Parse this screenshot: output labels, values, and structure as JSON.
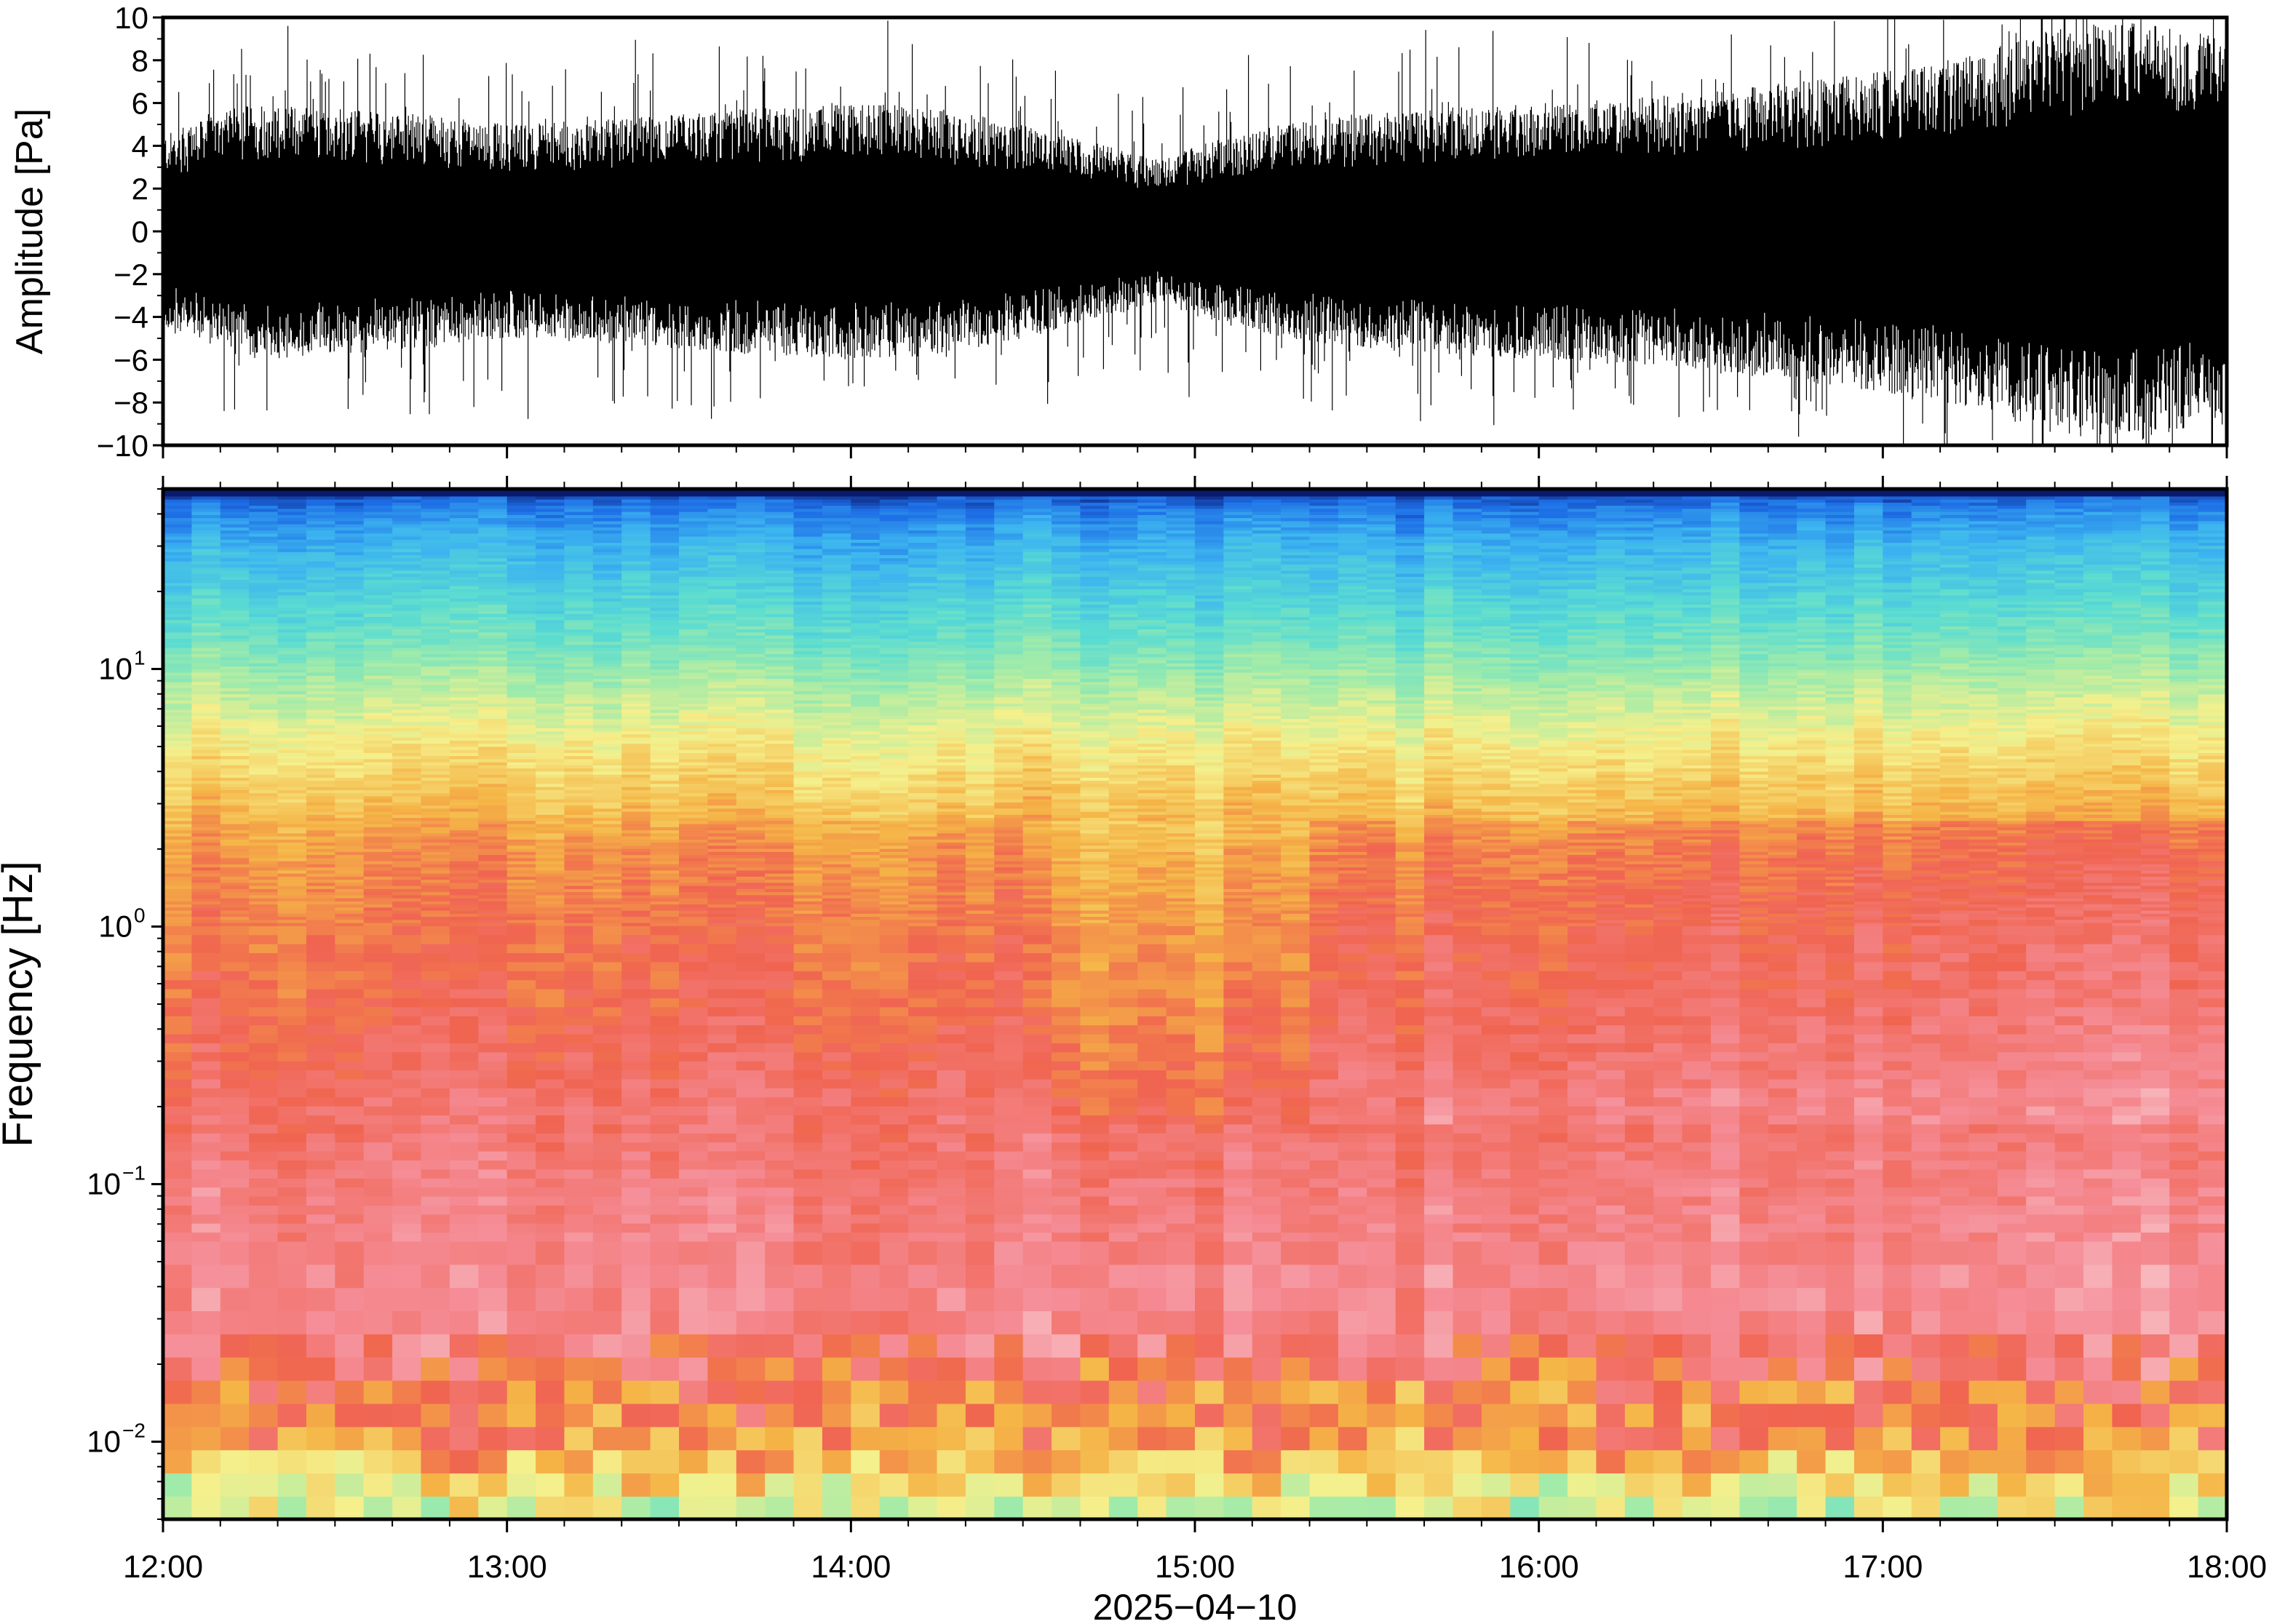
{
  "chart_data": [
    {
      "type": "line",
      "ylabel": "Amplitude [Pa]",
      "ylim": [
        -10,
        10
      ],
      "yticks": [
        "10",
        "8",
        "6",
        "4",
        "2",
        "0",
        "−2",
        "−4",
        "−6",
        "−8",
        "−10"
      ],
      "ytick_values": [
        10,
        8,
        6,
        4,
        2,
        0,
        -2,
        -4,
        -6,
        -8,
        -10
      ],
      "xlim": [
        "12:00",
        "18:00"
      ],
      "grid": false,
      "series": [
        {
          "color": "#000000",
          "envelope_hours": [
            12.0,
            12.25,
            12.5,
            12.75,
            13.0,
            13.25,
            13.5,
            13.75,
            14.0,
            14.25,
            14.5,
            14.75,
            14.9,
            15.0,
            15.25,
            15.5,
            15.75,
            16.0,
            16.25,
            16.5,
            16.75,
            17.0,
            17.25,
            17.5,
            17.75,
            18.0
          ],
          "envelope_amplitude": [
            4.5,
            6.0,
            5.8,
            5.5,
            5.0,
            5.2,
            5.5,
            5.8,
            6.0,
            5.8,
            5.0,
            4.0,
            3.3,
            4.0,
            5.0,
            5.5,
            5.8,
            6.0,
            6.2,
            6.6,
            7.0,
            7.5,
            8.2,
            9.5,
            9.8,
            9.0
          ]
        }
      ]
    },
    {
      "type": "heatmap",
      "xlabel": "2025−04−10",
      "ylabel": "Frequency [Hz]",
      "yscale": "log",
      "ylim": [
        0.005,
        50
      ],
      "yticks": [
        {
          "base": "10",
          "exp": "1",
          "value": 10
        },
        {
          "base": "10",
          "exp": "0",
          "value": 1
        },
        {
          "base": "10",
          "exp": "−1",
          "value": 0.1
        },
        {
          "base": "10",
          "exp": "−2",
          "value": 0.01
        }
      ],
      "xticks": [
        "12:00",
        "13:00",
        "14:00",
        "15:00",
        "16:00",
        "17:00",
        "18:00"
      ],
      "xtick_hours": [
        12,
        13,
        14,
        15,
        16,
        17,
        18
      ],
      "colormap": [
        "#0a1a6e",
        "#1e6ee6",
        "#3cb4f0",
        "#5adcd2",
        "#a0ebaa",
        "#f5f08c",
        "#f5b446",
        "#f06450",
        "#f58c96",
        "#fae6e6"
      ],
      "frequency_profile_log10hz": [
        -2.3,
        -2.15,
        -2.0,
        -1.8,
        -1.5,
        -1.0,
        -0.6,
        -0.3,
        0.0,
        0.3,
        0.55,
        0.75,
        0.95,
        1.1,
        1.3,
        1.5,
        1.62,
        1.7
      ],
      "frequency_profile_level": [
        0.5,
        0.58,
        0.72,
        0.75,
        0.88,
        0.85,
        0.8,
        0.76,
        0.74,
        0.7,
        0.62,
        0.55,
        0.46,
        0.38,
        0.3,
        0.22,
        0.14,
        0.05
      ]
    }
  ]
}
